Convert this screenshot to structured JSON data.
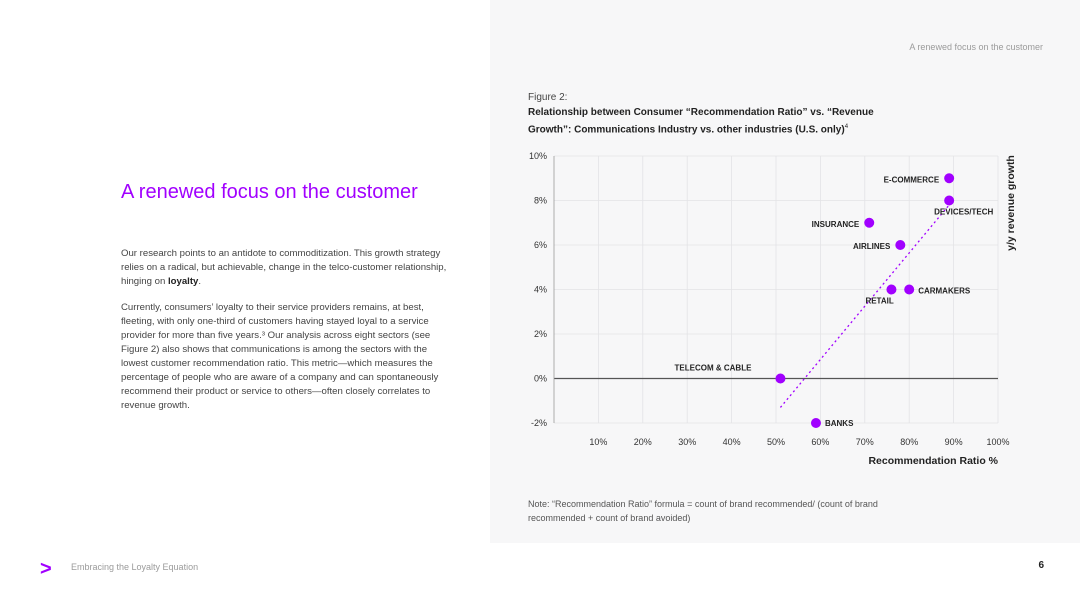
{
  "header": {
    "note": "A renewed focus on the customer"
  },
  "main": {
    "heading": "A renewed focus on the customer",
    "para1_before": "Our research points to an antidote to commoditization. This growth strategy relies on a radical, but achievable, change in the telco-customer relationship, hinging on ",
    "para1_bold": "loyalty",
    "para1_after": ".",
    "para2": "Currently, consumers’ loyalty to their service providers remains, at best, fleeting, with only one-third of customers having stayed loyal to a service provider for more than five years.³ Our analysis across eight sectors (see Figure 2) also shows that communications is among the sectors with the lowest customer recommendation ratio. This metric—which measures the percentage of people who are aware of a company and can spontaneously recommend their product or service to others—often closely correlates to revenue growth."
  },
  "figure": {
    "label": "Figure 2:",
    "title": "Relationship between Consumer “Recommendation Ratio” vs. “Revenue Growth”: Communications Industry vs. other industries (U.S. only)",
    "title_sup": "4",
    "note": "Note: “Recommendation Ratio” formula = count of brand recommended/ (count of brand recommended + count of brand avoided)"
  },
  "chart_data": {
    "type": "scatter",
    "xlabel": "Recommendation Ratio %",
    "ylabel": "y/y revenue growth",
    "xlim": [
      0,
      100
    ],
    "ylim": [
      -2,
      10
    ],
    "x_ticks": [
      10,
      20,
      30,
      40,
      50,
      60,
      70,
      80,
      90,
      100
    ],
    "x_tick_labels": [
      "10%",
      "20%",
      "30%",
      "40%",
      "50%",
      "60%",
      "70%",
      "80%",
      "90%",
      "100%"
    ],
    "y_ticks": [
      -2,
      0,
      2,
      4,
      6,
      8,
      10
    ],
    "y_tick_labels": [
      "-2%",
      "0%",
      "2%",
      "4%",
      "6%",
      "8%",
      "10%"
    ],
    "grid": true,
    "points": [
      {
        "label": "E-COMMERCE",
        "x": 89,
        "y": 9
      },
      {
        "label": "DEVICES/TECH",
        "x": 89,
        "y": 8
      },
      {
        "label": "INSURANCE",
        "x": 71,
        "y": 7
      },
      {
        "label": "AIRLINES",
        "x": 78,
        "y": 6
      },
      {
        "label": "RETAIL",
        "x": 76,
        "y": 4
      },
      {
        "label": "CARMAKERS",
        "x": 80,
        "y": 4
      },
      {
        "label": "TELECOM & CABLE",
        "x": 51,
        "y": 0
      },
      {
        "label": "BANKS",
        "x": 59,
        "y": -2
      }
    ],
    "trendline": {
      "style": "dotted",
      "from": [
        51,
        -1.3
      ],
      "to": [
        89,
        7.8
      ]
    },
    "colors": {
      "points": "#a100ff",
      "trend": "#a100ff",
      "zero_line": "#555555",
      "grid": "#e3e3e6"
    }
  },
  "footer": {
    "logo": ">",
    "text": "Embracing the Loyalty Equation",
    "page": "6"
  }
}
